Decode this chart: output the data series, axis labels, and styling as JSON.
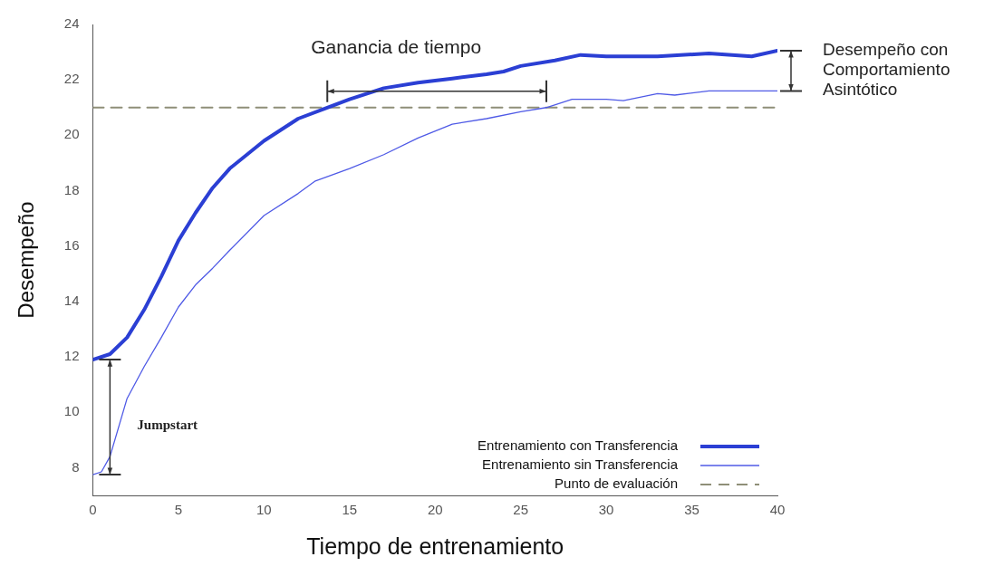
{
  "chart_data": {
    "type": "line",
    "xlabel": "Tiempo de entrenamiento",
    "ylabel": "Desempeño",
    "xlim": [
      0,
      40
    ],
    "xticks": [
      0,
      5,
      10,
      15,
      20,
      25,
      30,
      35,
      40
    ],
    "ylim": [
      7,
      24
    ],
    "yticks": [
      8,
      10,
      12,
      14,
      16,
      18,
      20,
      22,
      24
    ],
    "grid": false,
    "legend": "bottom right",
    "marker": "none",
    "series": [
      {
        "name": "Entrenamiento con Transferencia",
        "color": "#2b3fd4",
        "x": [
          0,
          1,
          2,
          3,
          4,
          5,
          6,
          7,
          8,
          10,
          12,
          13.7,
          15,
          17,
          19,
          21,
          23,
          24,
          25,
          27,
          28.5,
          30,
          33,
          36,
          38.5,
          40
        ],
        "values": [
          11.9,
          12.1,
          12.7,
          13.7,
          14.9,
          16.2,
          17.2,
          18.1,
          18.8,
          19.8,
          20.6,
          21.0,
          21.3,
          21.7,
          21.9,
          22.05,
          22.2,
          22.3,
          22.5,
          22.7,
          22.9,
          22.85,
          22.85,
          22.95,
          22.85,
          23.05
        ]
      },
      {
        "name": "Entrenamiento sin Transferencia",
        "color": "#4f5ae6",
        "x": [
          0,
          0.5,
          1,
          2,
          3,
          4,
          5,
          6,
          7,
          8,
          10,
          12,
          13,
          15,
          17,
          19,
          21,
          23,
          25,
          26.5,
          28,
          30,
          31,
          33,
          34,
          36,
          38,
          40
        ],
        "values": [
          7.75,
          7.85,
          8.4,
          10.5,
          11.65,
          12.7,
          13.8,
          14.6,
          15.2,
          15.85,
          17.1,
          17.9,
          18.35,
          18.8,
          19.3,
          19.9,
          20.4,
          20.6,
          20.85,
          21.0,
          21.3,
          21.3,
          21.25,
          21.5,
          21.45,
          21.6,
          21.6,
          21.6
        ]
      },
      {
        "name": "Punto de evaluación",
        "color": "#8f8f78",
        "line_style": "dashed",
        "x": [
          0,
          40
        ],
        "values": [
          21,
          21
        ]
      }
    ],
    "annotations": [
      {
        "text": "Ganancia de tiempo",
        "x": 13.7,
        "y": 21
      },
      "Jumpstart",
      "Desempeño con\nComportamiento\nAsintótico"
    ]
  }
}
